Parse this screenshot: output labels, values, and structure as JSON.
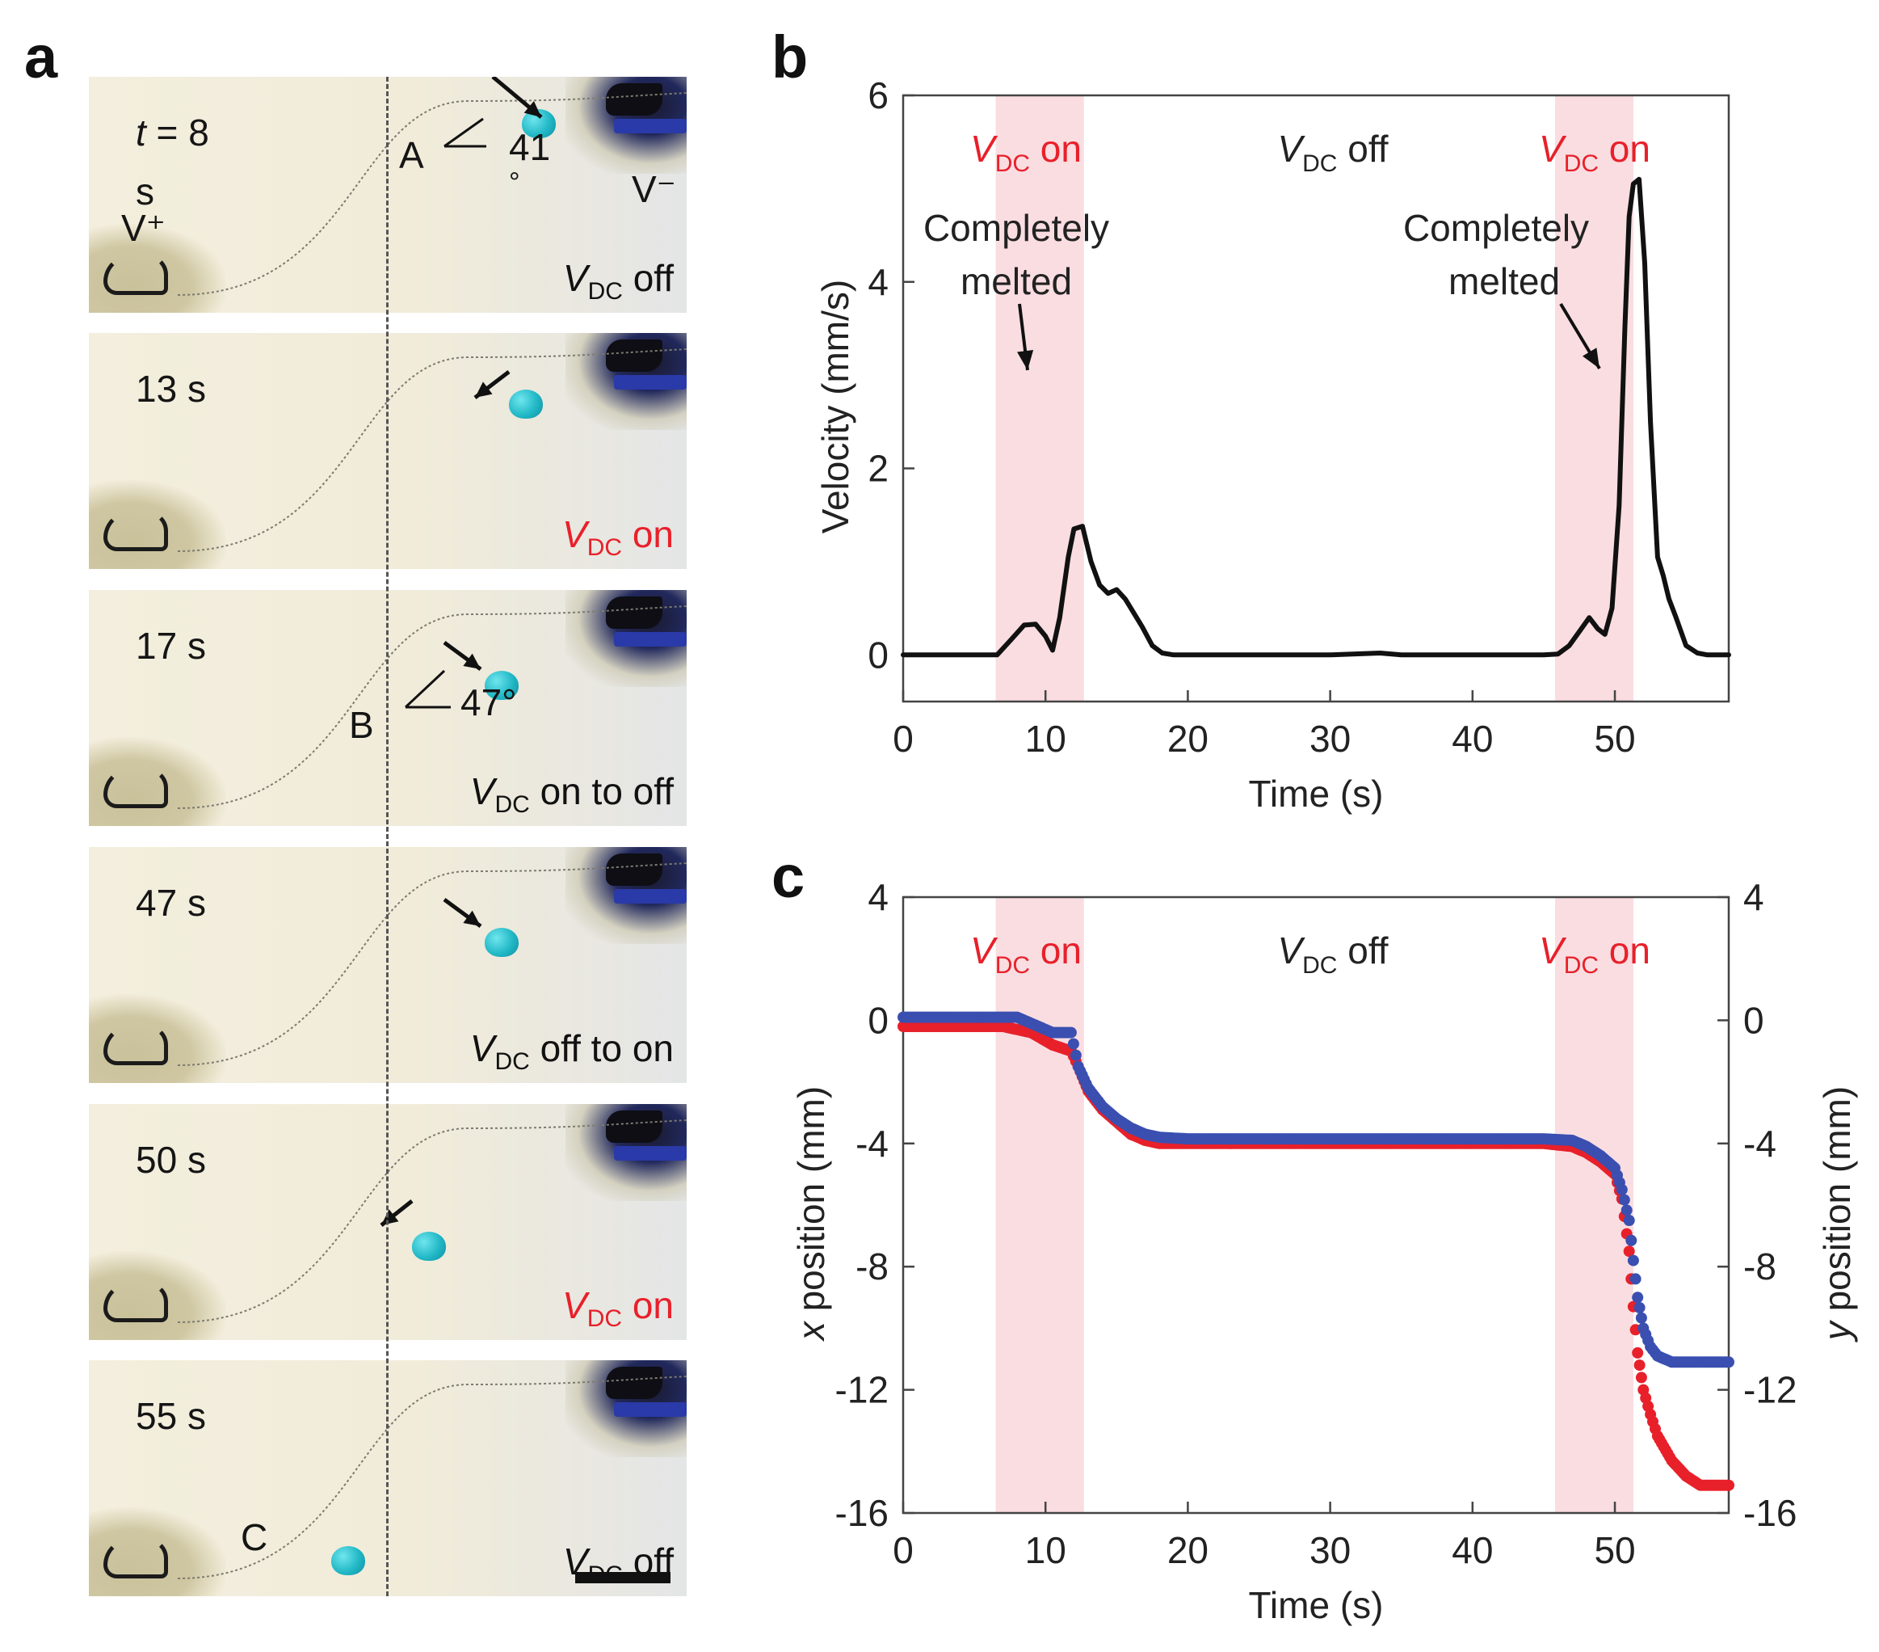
{
  "panels": {
    "a": "a",
    "b": "b",
    "c": "c"
  },
  "panel_a": {
    "frames": [
      {
        "time": "t = 8",
        "time2": "s",
        "state": "off",
        "state_prefix": "",
        "state_suffix": "",
        "red": false,
        "extra_labels": {
          "point": "A",
          "angle": "41",
          "degree": "°",
          "vplus": "V⁺",
          "vminus": "V⁻"
        }
      },
      {
        "time": "13 s",
        "state": "on",
        "state_prefix": "",
        "state_suffix": "",
        "red": true
      },
      {
        "time": "17 s",
        "state": "on to off",
        "red": false,
        "extra_labels": {
          "point": "B",
          "angle": "47°"
        }
      },
      {
        "time": "47 s",
        "state": "off to on",
        "red": false
      },
      {
        "time": "50 s",
        "state": "on",
        "red": true
      },
      {
        "time": "55 s",
        "state": "off",
        "red": false,
        "extra_labels": {
          "point": "C"
        }
      }
    ],
    "vdc_symbol": "V",
    "vdc_sub": "DC"
  },
  "chart_data": [
    {
      "type": "line",
      "panel": "b",
      "xlabel": "Time (s)",
      "ylabel": "Velocity (mm/s)",
      "xlim": [
        0,
        58
      ],
      "ylim": [
        -0.5,
        6
      ],
      "xticks": [
        0,
        10,
        20,
        30,
        40,
        50
      ],
      "yticks": [
        0,
        2,
        4,
        6
      ],
      "shaded_regions": [
        [
          6.5,
          12.7
        ],
        [
          45.8,
          51.3
        ]
      ],
      "shade_color": "#f9dde1",
      "annotations": {
        "left_state": "on",
        "middle_state": "off",
        "right_state": "on",
        "completely_1": "Completely",
        "melted_1": "melted",
        "completely_2": "Completely",
        "melted_2": "melted"
      },
      "series": [
        {
          "color": "#111111",
          "x": [
            0,
            5,
            6.6,
            7.5,
            8.5,
            9.3,
            10.0,
            10.5,
            11.0,
            11.6,
            12.0,
            12.6,
            13.2,
            13.8,
            14.4,
            15.0,
            15.6,
            16.2,
            16.8,
            17.5,
            18.2,
            19.0,
            20,
            25,
            30,
            33.5,
            35,
            40,
            45,
            46.0,
            46.8,
            47.5,
            48.2,
            48.8,
            49.3,
            49.8,
            50.3,
            50.7,
            51.0,
            51.3,
            51.7,
            52.1,
            52.5,
            53.0,
            53.4,
            53.8,
            54.3,
            55.0,
            55.8,
            56.5,
            57.2,
            58
          ],
          "y": [
            0,
            0,
            0,
            0.15,
            0.32,
            0.33,
            0.2,
            0.05,
            0.4,
            1.05,
            1.35,
            1.38,
            1.0,
            0.75,
            0.66,
            0.7,
            0.6,
            0.45,
            0.3,
            0.1,
            0.02,
            0,
            0,
            0,
            0,
            0.02,
            0,
            0,
            0,
            0.01,
            0.1,
            0.25,
            0.4,
            0.28,
            0.22,
            0.5,
            1.6,
            3.5,
            4.7,
            5.05,
            5.1,
            4.2,
            2.5,
            1.05,
            0.85,
            0.6,
            0.4,
            0.1,
            0.02,
            0,
            0,
            0
          ]
        }
      ]
    },
    {
      "type": "scatter",
      "panel": "c",
      "xlabel": "Time (s)",
      "ylabel_left_italic": "x",
      "ylabel_left": " position (mm)",
      "ylabel_right_italic": "y",
      "ylabel_right": " position (mm)",
      "xlim": [
        0,
        58
      ],
      "ylim": [
        -16,
        4
      ],
      "xticks": [
        0,
        10,
        20,
        30,
        40,
        50
      ],
      "yticks": [
        4,
        0,
        -4,
        -8,
        -12,
        -16
      ],
      "shaded_regions": [
        [
          6.5,
          12.7
        ],
        [
          45.8,
          51.3
        ]
      ],
      "shade_color": "#f9dde1",
      "annotations": {
        "left_state": "on",
        "middle_state": "off",
        "right_state": "on"
      },
      "series": [
        {
          "name": "x position",
          "color": "#e8202a",
          "x": [
            0,
            7,
            9,
            10.5,
            11.8,
            12.3,
            13,
            14,
            15,
            16,
            17,
            18,
            20,
            30,
            40,
            45,
            47,
            48,
            49,
            50,
            50.5,
            51,
            51.3,
            51.6,
            52,
            52.5,
            53,
            54,
            55,
            56,
            57,
            58
          ],
          "y": [
            -0.2,
            -0.2,
            -0.4,
            -0.8,
            -1.0,
            -1.5,
            -2.3,
            -2.9,
            -3.3,
            -3.7,
            -3.9,
            -4.0,
            -4.0,
            -4.0,
            -4.0,
            -4.0,
            -4.1,
            -4.3,
            -4.6,
            -5.0,
            -5.8,
            -7.5,
            -9.3,
            -10.8,
            -12.0,
            -12.8,
            -13.5,
            -14.3,
            -14.8,
            -15.1,
            -15.1,
            -15.1
          ]
        },
        {
          "name": "y position",
          "color": "#3a4fb0",
          "x": [
            0,
            7,
            8,
            9,
            10.5,
            11.8,
            12.3,
            13,
            14,
            15,
            16,
            17,
            18,
            20,
            30,
            40,
            45,
            47,
            48,
            49,
            50,
            50.5,
            51,
            51.3,
            51.6,
            52,
            52.5,
            53,
            54,
            55,
            56,
            57,
            58
          ],
          "y": [
            0.1,
            0.1,
            0.1,
            -0.1,
            -0.4,
            -0.4,
            -1.5,
            -2.2,
            -2.8,
            -3.2,
            -3.5,
            -3.7,
            -3.8,
            -3.85,
            -3.85,
            -3.85,
            -3.85,
            -3.9,
            -4.1,
            -4.4,
            -4.8,
            -5.5,
            -6.5,
            -7.8,
            -9.0,
            -10.0,
            -10.6,
            -10.9,
            -11.1,
            -11.1,
            -11.1,
            -11.1,
            -11.1
          ]
        }
      ]
    }
  ]
}
